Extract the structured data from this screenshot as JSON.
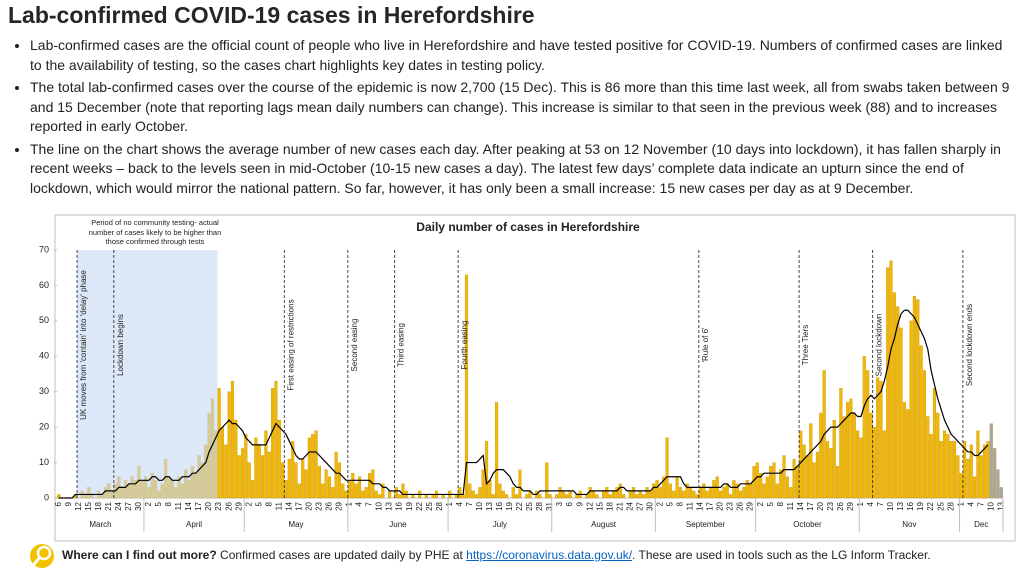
{
  "header": {
    "title": "Lab-confirmed COVID-19 cases in Herefordshire"
  },
  "bullets": [
    "Lab-confirmed cases are the official count of people who live in Herefordshire and have tested positive for COVID-19.  Numbers of confirmed cases are linked to the availability of testing, so the cases chart highlights key dates in testing policy.",
    "The total lab-confirmed cases over the course of the epidemic is now 2,700 (15 Dec).  This is 86 more than this time last week, all from swabs taken between 9 and 15 December (note that reporting lags mean daily numbers can change).  This increase is similar to that seen in the previous week (88) and to increases reported in early October.",
    "The line on the chart shows the average number of new cases each day.  After peaking at 53 on 12 November (10 days into lockdown), it has fallen sharply in recent weeks – back to the levels seen in mid-October (10-15 new cases a day).  The latest few days’ complete data indicate an upturn since the end of lockdown, which would mirror the national pattern. So far, however, it has only been a small increase: 15 new cases per day as at 9 December."
  ],
  "chart_data": {
    "type": "bar",
    "title": "Daily number of cases in Herefordshire",
    "months": [
      "March",
      "April",
      "May",
      "June",
      "July",
      "August",
      "September",
      "October",
      "Nov",
      "Dec"
    ],
    "categories": [
      "6",
      null,
      null,
      "9",
      null,
      null,
      "12",
      null,
      null,
      "15",
      null,
      null,
      "18",
      null,
      null,
      "21",
      null,
      null,
      "24",
      null,
      null,
      "27",
      null,
      null,
      "30",
      null,
      null,
      "2",
      null,
      null,
      "5",
      null,
      null,
      "8",
      null,
      null,
      "11",
      null,
      null,
      "14",
      null,
      null,
      "17",
      null,
      null,
      "20",
      null,
      null,
      "23",
      null,
      null,
      "26",
      null,
      null,
      "29",
      null,
      null,
      "2",
      null,
      null,
      "5",
      null,
      null,
      "8",
      null,
      null,
      "11",
      null,
      null,
      "14",
      null,
      null,
      "17",
      null,
      null,
      "20",
      null,
      null,
      "23",
      null,
      null,
      "26",
      null,
      null,
      "29",
      null,
      null,
      "1",
      null,
      null,
      "4",
      null,
      null,
      "7",
      null,
      null,
      "10",
      null,
      null,
      "13",
      null,
      null,
      "16",
      null,
      null,
      "19",
      null,
      null,
      "22",
      null,
      null,
      "25",
      null,
      null,
      "28",
      null,
      null,
      "1",
      null,
      null,
      "4",
      null,
      null,
      "7",
      null,
      null,
      "10",
      null,
      null,
      "13",
      null,
      null,
      "16",
      null,
      null,
      "19",
      null,
      null,
      "22",
      null,
      null,
      "25",
      null,
      null,
      "28",
      null,
      null,
      "31",
      null,
      null,
      "3",
      null,
      null,
      "6",
      null,
      null,
      "9",
      null,
      null,
      "12",
      null,
      null,
      "15",
      null,
      null,
      "18",
      null,
      null,
      "21",
      null,
      null,
      "24",
      null,
      null,
      "27",
      null,
      null,
      "30",
      null,
      null,
      "2",
      null,
      null,
      "5",
      null,
      null,
      "8",
      null,
      null,
      "11",
      null,
      null,
      "14",
      null,
      null,
      "17",
      null,
      null,
      "20",
      null,
      null,
      "23",
      null,
      null,
      "26",
      null,
      null,
      "29",
      null,
      null,
      "2",
      null,
      null,
      "5",
      null,
      null,
      "8",
      null,
      null,
      "11",
      null,
      null,
      "14",
      null,
      null,
      "17",
      null,
      null,
      "20",
      null,
      null,
      "23",
      null,
      null,
      "26",
      null,
      null,
      "29",
      null,
      null,
      "1",
      null,
      null,
      "4",
      null,
      null,
      "7",
      null,
      null,
      "10",
      null,
      null,
      "13",
      null,
      null,
      "16",
      null,
      null,
      "19",
      null,
      null,
      "22",
      null,
      null,
      "25",
      null,
      null,
      "28",
      null,
      null,
      "1",
      null,
      null,
      "4",
      null,
      null,
      "7",
      null,
      null,
      "10",
      null,
      null,
      "13"
    ],
    "series": [
      {
        "type": "bar",
        "color": "#f2b705",
        "values": [
          1,
          0,
          0,
          0,
          0,
          1,
          0,
          2,
          1,
          3,
          1,
          0,
          2,
          1,
          3,
          4,
          2,
          4,
          6,
          3,
          5,
          4,
          6,
          5,
          9,
          5,
          6,
          3,
          7,
          5,
          2,
          4,
          11,
          6,
          5,
          3,
          6,
          4,
          8,
          5,
          9,
          7,
          12,
          10,
          15,
          24,
          28,
          19,
          31,
          20,
          15,
          30,
          33,
          22,
          12,
          14,
          18,
          10,
          5,
          17,
          15,
          12,
          19,
          13,
          31,
          33,
          22,
          10,
          5,
          11,
          16,
          10,
          4,
          11,
          8,
          17,
          18,
          19,
          9,
          4,
          8,
          6,
          3,
          13,
          10,
          4,
          2,
          5,
          7,
          4,
          6,
          2,
          3,
          7,
          8,
          2,
          1,
          4,
          0,
          2,
          0,
          3,
          1,
          4,
          2,
          0,
          1,
          0,
          2,
          0,
          1,
          0,
          1,
          2,
          0,
          1,
          0,
          2,
          0,
          1,
          3,
          1,
          63,
          4,
          2,
          1,
          3,
          8,
          16,
          5,
          1,
          27,
          4,
          2,
          1,
          0,
          3,
          1,
          8,
          0,
          1,
          2,
          0,
          2,
          1,
          0,
          10,
          1,
          0,
          1,
          3,
          2,
          1,
          2,
          0,
          1,
          2,
          0,
          1,
          3,
          2,
          1,
          0,
          2,
          3,
          1,
          2,
          3,
          4,
          1,
          0,
          2,
          3,
          1,
          2,
          1,
          3,
          2,
          4,
          5,
          3,
          6,
          17,
          4,
          2,
          6,
          3,
          2,
          4,
          3,
          2,
          1,
          3,
          4,
          2,
          3,
          5,
          6,
          2,
          3,
          4,
          1,
          5,
          4,
          2,
          3,
          5,
          4,
          9,
          10,
          7,
          4,
          6,
          9,
          10,
          4,
          8,
          12,
          6,
          3,
          11,
          9,
          19,
          15,
          12,
          21,
          10,
          13,
          24,
          36,
          16,
          14,
          22,
          9,
          31,
          23,
          27,
          28,
          24,
          19,
          17,
          40,
          36,
          24,
          20,
          34,
          33,
          19,
          65,
          67,
          58,
          54,
          48,
          27,
          25,
          50,
          57,
          56,
          43,
          36,
          23,
          18,
          31,
          24,
          16,
          19,
          18,
          16,
          16,
          12,
          7,
          16,
          11,
          15,
          6,
          19,
          12,
          15,
          16,
          null,
          null,
          null,
          null
        ]
      },
      {
        "type": "bar",
        "color": "#a6a6a6",
        "values": [
          null,
          null,
          null,
          null,
          null,
          null,
          null,
          null,
          null,
          null,
          null,
          null,
          null,
          null,
          null,
          null,
          null,
          null,
          null,
          null,
          null,
          null,
          null,
          null,
          null,
          null,
          null,
          null,
          null,
          null,
          null,
          null,
          null,
          null,
          null,
          null,
          null,
          null,
          null,
          null,
          null,
          null,
          null,
          null,
          null,
          null,
          null,
          null,
          null,
          null,
          null,
          null,
          null,
          null,
          null,
          null,
          null,
          null,
          null,
          null,
          null,
          null,
          null,
          null,
          null,
          null,
          null,
          null,
          null,
          null,
          null,
          null,
          null,
          null,
          null,
          null,
          null,
          null,
          null,
          null,
          null,
          null,
          null,
          null,
          null,
          null,
          null,
          null,
          null,
          null,
          null,
          null,
          null,
          null,
          null,
          null,
          null,
          null,
          null,
          null,
          null,
          null,
          null,
          null,
          null,
          null,
          null,
          null,
          null,
          null,
          null,
          null,
          null,
          null,
          null,
          null,
          null,
          null,
          null,
          null,
          null,
          null,
          null,
          null,
          null,
          null,
          null,
          null,
          null,
          null,
          null,
          null,
          null,
          null,
          null,
          null,
          null,
          null,
          null,
          null,
          null,
          null,
          null,
          null,
          null,
          null,
          null,
          null,
          null,
          null,
          null,
          null,
          null,
          null,
          null,
          null,
          null,
          null,
          null,
          null,
          null,
          null,
          null,
          null,
          null,
          null,
          null,
          null,
          null,
          null,
          null,
          null,
          null,
          null,
          null,
          null,
          null,
          null,
          null,
          null,
          null,
          null,
          null,
          null,
          null,
          null,
          null,
          null,
          null,
          null,
          null,
          null,
          null,
          null,
          null,
          null,
          null,
          null,
          null,
          null,
          null,
          null,
          null,
          null,
          null,
          null,
          null,
          null,
          null,
          null,
          null,
          null,
          null,
          null,
          null,
          null,
          null,
          null,
          null,
          null,
          null,
          null,
          null,
          null,
          null,
          null,
          null,
          null,
          null,
          null,
          null,
          null,
          null,
          null,
          null,
          null,
          null,
          null,
          null,
          null,
          null,
          null,
          null,
          null,
          null,
          null,
          null,
          null,
          null,
          null,
          null,
          null,
          null,
          null,
          null,
          null,
          null,
          null,
          null,
          null,
          null,
          null,
          null,
          null,
          null,
          null,
          null,
          null,
          null,
          null,
          null,
          null,
          null,
          null,
          null,
          null,
          null,
          null,
          null,
          21,
          14,
          8,
          3
        ]
      },
      {
        "type": "line",
        "color": "#000000",
        "values": [
          0,
          0,
          0,
          0,
          0,
          1,
          1,
          1,
          1,
          1,
          1,
          1,
          1,
          1,
          2,
          2,
          2,
          2,
          3,
          3,
          3,
          4,
          4,
          4,
          5,
          5,
          5,
          5,
          6,
          6,
          5,
          5,
          6,
          6,
          5,
          5,
          5,
          6,
          6,
          6,
          7,
          7,
          8,
          9,
          10,
          13,
          15,
          17,
          19,
          20,
          21,
          22,
          21,
          21,
          20,
          19,
          17,
          16,
          15,
          15,
          15,
          15,
          15,
          17,
          19,
          21,
          20,
          19,
          18,
          16,
          14,
          12,
          11,
          11,
          12,
          13,
          13,
          13,
          12,
          11,
          10,
          9,
          8,
          7,
          7,
          6,
          5,
          5,
          5,
          5,
          5,
          5,
          5,
          5,
          4,
          4,
          4,
          3,
          3,
          2,
          2,
          2,
          2,
          1,
          1,
          1,
          1,
          1,
          1,
          1,
          1,
          1,
          1,
          1,
          1,
          1,
          1,
          1,
          1,
          1,
          1,
          1,
          10,
          10,
          10,
          10,
          11,
          12,
          4,
          5,
          7,
          8,
          8,
          8,
          7,
          6,
          4,
          3,
          3,
          2,
          2,
          2,
          1,
          1,
          2,
          2,
          2,
          2,
          2,
          2,
          2,
          2,
          2,
          2,
          2,
          1,
          1,
          1,
          1,
          2,
          2,
          2,
          2,
          2,
          2,
          2,
          2,
          2,
          3,
          3,
          2,
          2,
          2,
          2,
          2,
          2,
          2,
          2,
          3,
          3,
          4,
          5,
          6,
          6,
          6,
          6,
          6,
          4,
          3,
          3,
          3,
          3,
          3,
          3,
          3,
          3,
          3,
          3,
          3,
          4,
          4,
          3,
          3,
          3,
          4,
          4,
          4,
          4,
          5,
          6,
          6,
          7,
          7,
          7,
          7,
          7,
          7,
          8,
          8,
          8,
          8,
          9,
          10,
          11,
          12,
          13,
          14,
          15,
          16,
          18,
          19,
          20,
          20,
          20,
          21,
          22,
          23,
          24,
          24,
          23,
          23,
          26,
          28,
          29,
          28,
          29,
          30,
          33,
          37,
          42,
          45,
          49,
          52,
          53,
          53,
          52,
          51,
          49,
          47,
          45,
          42,
          36,
          32,
          28,
          25,
          22,
          20,
          18,
          17,
          16,
          15,
          14,
          13,
          13,
          12,
          12,
          13,
          14,
          15,
          null,
          null,
          null,
          null
        ]
      }
    ],
    "ylim": [
      0,
      70
    ],
    "yticks": [
      0,
      10,
      20,
      30,
      40,
      50,
      60,
      70
    ],
    "shaded_period": {
      "label": "Period of no community testing- actual number of cases likely to be higher than those confirmed through tests",
      "color": "#c5d9f1",
      "from": {
        "month": "March",
        "day": 12
      },
      "to": {
        "month": "April",
        "day": 22
      }
    },
    "events": [
      {
        "label": "UK moves from 'contain' into 'delay' phase",
        "month": "March",
        "day": 12
      },
      {
        "label": "Lockdown begins",
        "month": "March",
        "day": 23
      },
      {
        "label": "First easing of restrictions",
        "month": "May",
        "day": 13
      },
      {
        "label": "Second easing",
        "month": "June",
        "day": 1
      },
      {
        "label": "Third easing",
        "month": "June",
        "day": 15
      },
      {
        "label": "Fourth easing",
        "month": "July",
        "day": 4
      },
      {
        "label": "'Rule of 6'",
        "month": "September",
        "day": 14
      },
      {
        "label": "Three Tiers",
        "month": "October",
        "day": 14
      },
      {
        "label": "Second lockdown",
        "month": "Nov",
        "day": 5
      },
      {
        "label": "Second lockdown ends",
        "month": "Dec",
        "day": 2
      }
    ]
  },
  "footer": {
    "question": "Where can I find out more?",
    "text_before": "Confirmed cases are updated daily by PHE at",
    "link": "https://coronavirus.data.gov.uk/",
    "text_after": ". These are used in tools such as the LG Inform Tracker."
  }
}
